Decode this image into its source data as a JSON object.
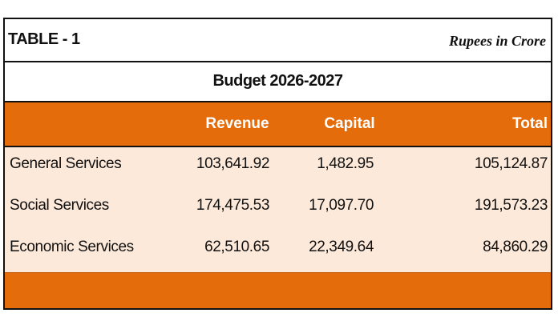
{
  "table": {
    "title": "TABLE - 1",
    "unit": "Rupees in Crore",
    "subtitle": "Budget 2026-2027",
    "headers": {
      "revenue": "Revenue",
      "capital": "Capital",
      "total": "Total"
    },
    "rows": [
      {
        "label": "General Services",
        "revenue": "103,641.92",
        "capital": "1,482.95",
        "total": "105,124.87"
      },
      {
        "label": "Social Services",
        "revenue": "174,475.53",
        "capital": "17,097.70",
        "total": "191,573.23"
      },
      {
        "label": "Economic Services",
        "revenue": "62,510.65",
        "capital": "22,349.64",
        "total": "84,860.29"
      }
    ]
  },
  "colors": {
    "header_bg": "#E46C0A",
    "body_bg": "#FDE9D9",
    "border": "#111111"
  }
}
